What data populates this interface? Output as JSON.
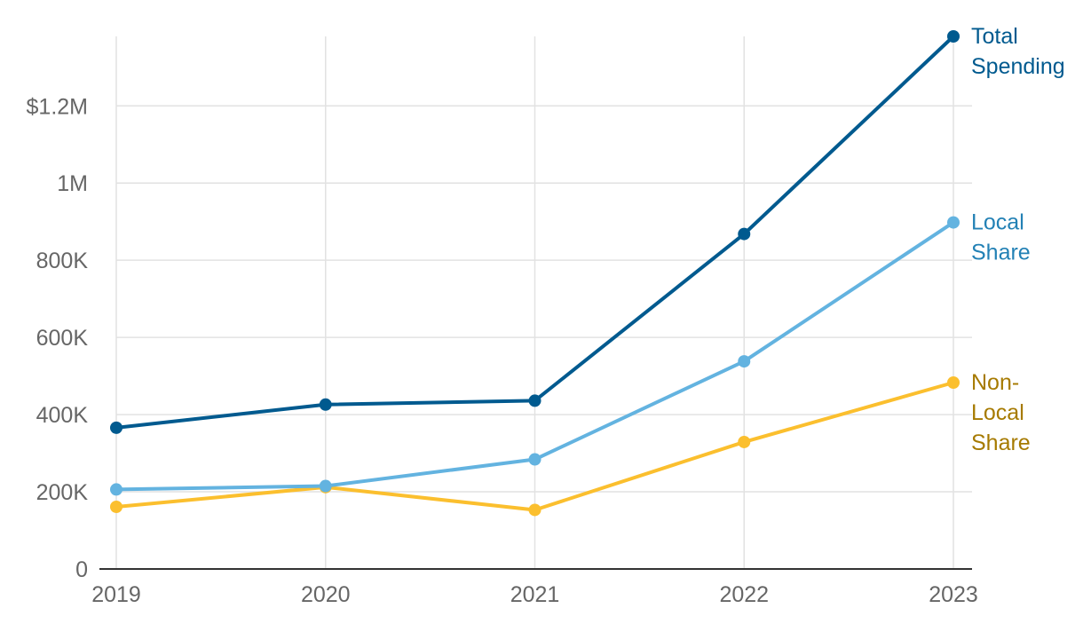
{
  "chart_data": {
    "type": "line",
    "title": "",
    "xlabel": "",
    "ylabel": "",
    "x": [
      "2019",
      "2020",
      "2021",
      "2022",
      "2023"
    ],
    "ylim": [
      0,
      1380000
    ],
    "yticks": [
      {
        "value": 0,
        "label": "0"
      },
      {
        "value": 200000,
        "label": "200K"
      },
      {
        "value": 400000,
        "label": "400K"
      },
      {
        "value": 600000,
        "label": "600K"
      },
      {
        "value": 800000,
        "label": "800K"
      },
      {
        "value": 1000000,
        "label": "1M"
      },
      {
        "value": 1200000,
        "label": "$1.2M"
      }
    ],
    "grid": true,
    "legend": "direct labels at line ends (right)",
    "series": [
      {
        "key": "total",
        "name": "Total Spending",
        "label_lines": [
          "Total",
          "Spending"
        ],
        "color": "#005a8f",
        "label_color": "#005a8f",
        "values": [
          366000,
          426000,
          436000,
          868000,
          1380000
        ]
      },
      {
        "key": "local",
        "name": "Local Share",
        "label_lines": [
          "Local",
          "Share"
        ],
        "color": "#63b3e0",
        "label_color": "#2381b5",
        "values": [
          206000,
          215000,
          284000,
          538000,
          898000
        ]
      },
      {
        "key": "nonlocal",
        "name": "Non-Local Share",
        "label_lines": [
          "Non-",
          "Local",
          "Share"
        ],
        "color": "#fbbf2e",
        "label_color": "#a67a00",
        "values": [
          161000,
          212000,
          153000,
          329000,
          483000
        ]
      }
    ]
  }
}
